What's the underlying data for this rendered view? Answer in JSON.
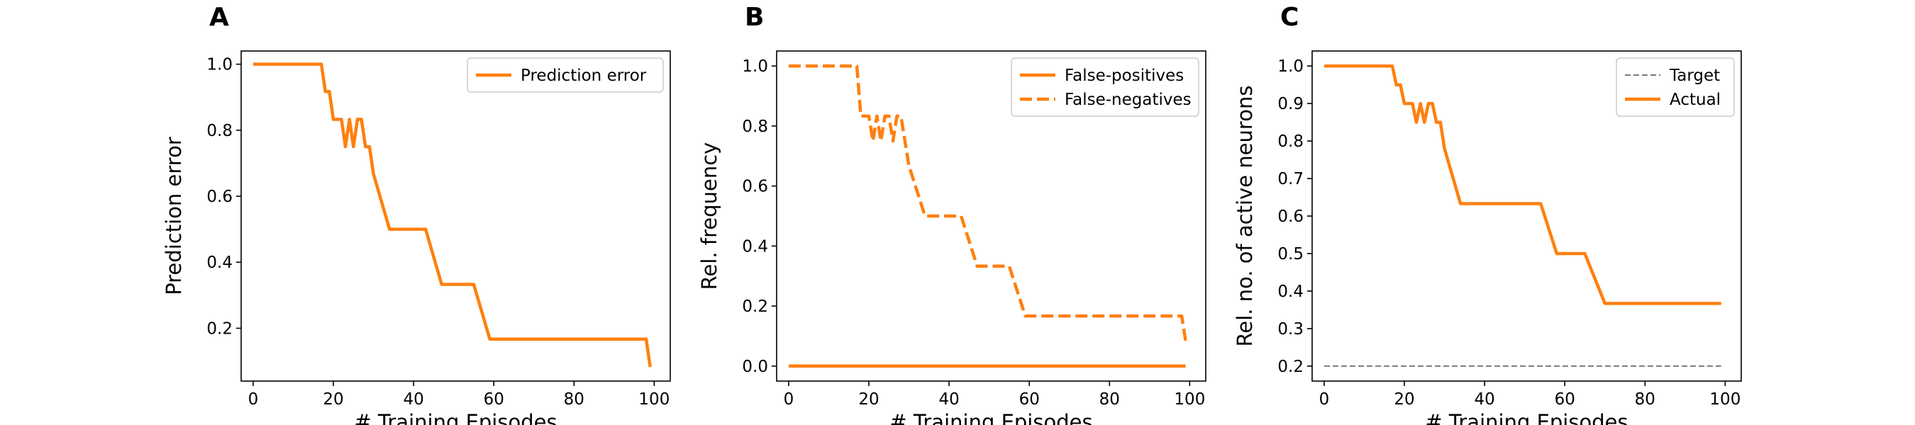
{
  "colors": {
    "series": "#ff7f0e",
    "target": "#808080",
    "axis": "#000000",
    "legend_border": "#cccccc"
  },
  "chart_data": [
    {
      "panel": "A",
      "type": "line",
      "xlabel": "# Training Episodes",
      "ylabel": "Prediction error",
      "xlim": [
        -3,
        104
      ],
      "ylim": [
        0.04,
        1.04
      ],
      "xticks": [
        0,
        20,
        40,
        60,
        80,
        100
      ],
      "yticks": [
        0.2,
        0.4,
        0.6,
        0.8,
        1.0
      ],
      "ytick_labels": [
        "0.2",
        "0.4",
        "0.6",
        "0.8",
        "1.0"
      ],
      "grid": false,
      "legend": "top-right",
      "series": [
        {
          "name": "Prediction error",
          "style": "solid",
          "color": "#ff7f0e",
          "x": [
            0,
            17,
            18,
            19,
            20,
            21,
            22,
            23,
            24,
            25,
            26,
            27,
            28,
            29,
            30,
            34,
            43,
            47,
            55,
            59,
            98,
            99
          ],
          "y": [
            1.0,
            1.0,
            0.917,
            0.917,
            0.833,
            0.833,
            0.833,
            0.75,
            0.833,
            0.75,
            0.833,
            0.833,
            0.75,
            0.75,
            0.667,
            0.5,
            0.5,
            0.333,
            0.333,
            0.167,
            0.167,
            0.083
          ]
        }
      ]
    },
    {
      "panel": "B",
      "type": "line",
      "xlabel": "# Training Episodes",
      "ylabel": "Rel. frequency",
      "xlim": [
        -3,
        104
      ],
      "ylim": [
        -0.05,
        1.05
      ],
      "xticks": [
        0,
        20,
        40,
        60,
        80,
        100
      ],
      "yticks": [
        0.0,
        0.2,
        0.4,
        0.6,
        0.8,
        1.0
      ],
      "ytick_labels": [
        "0.0",
        "0.2",
        "0.4",
        "0.6",
        "0.8",
        "1.0"
      ],
      "grid": false,
      "legend": "top-right",
      "series": [
        {
          "name": "False-positives",
          "style": "solid",
          "color": "#ff7f0e",
          "x": [
            0,
            99
          ],
          "y": [
            0.0,
            0.0
          ]
        },
        {
          "name": "False-negatives",
          "style": "dashed",
          "color": "#ff7f0e",
          "x": [
            0,
            17,
            18,
            19,
            20,
            21,
            22,
            23,
            24,
            25,
            26,
            27,
            28,
            29,
            30,
            34,
            43,
            47,
            55,
            59,
            98,
            99
          ],
          "y": [
            1.0,
            1.0,
            0.833,
            0.833,
            0.833,
            0.75,
            0.833,
            0.75,
            0.833,
            0.833,
            0.75,
            0.833,
            0.833,
            0.75,
            0.667,
            0.5,
            0.5,
            0.333,
            0.333,
            0.167,
            0.167,
            0.083
          ]
        }
      ]
    },
    {
      "panel": "C",
      "type": "line",
      "xlabel": "# Training Episodes",
      "ylabel": "Rel. no. of active neurons",
      "xlim": [
        -3,
        104
      ],
      "ylim": [
        0.16,
        1.04
      ],
      "xticks": [
        0,
        20,
        40,
        60,
        80,
        100
      ],
      "yticks": [
        0.2,
        0.3,
        0.4,
        0.5,
        0.6,
        0.7,
        0.8,
        0.9,
        1.0
      ],
      "ytick_labels": [
        "0.2",
        "0.3",
        "0.4",
        "0.5",
        "0.6",
        "0.7",
        "0.8",
        "0.9",
        "1.0"
      ],
      "grid": false,
      "legend": "top-right",
      "series": [
        {
          "name": "Target",
          "style": "dashed-thin",
          "color": "#808080",
          "x": [
            0,
            99
          ],
          "y": [
            0.2,
            0.2
          ]
        },
        {
          "name": "Actual",
          "style": "solid",
          "color": "#ff7f0e",
          "x": [
            0,
            17,
            18,
            19,
            20,
            21,
            22,
            23,
            24,
            25,
            26,
            27,
            28,
            29,
            30,
            34,
            54,
            58,
            65,
            70,
            99
          ],
          "y": [
            1.0,
            1.0,
            0.95,
            0.95,
            0.9,
            0.9,
            0.9,
            0.85,
            0.9,
            0.85,
            0.9,
            0.9,
            0.85,
            0.85,
            0.78,
            0.633,
            0.633,
            0.5,
            0.5,
            0.367,
            0.367
          ]
        }
      ]
    }
  ]
}
